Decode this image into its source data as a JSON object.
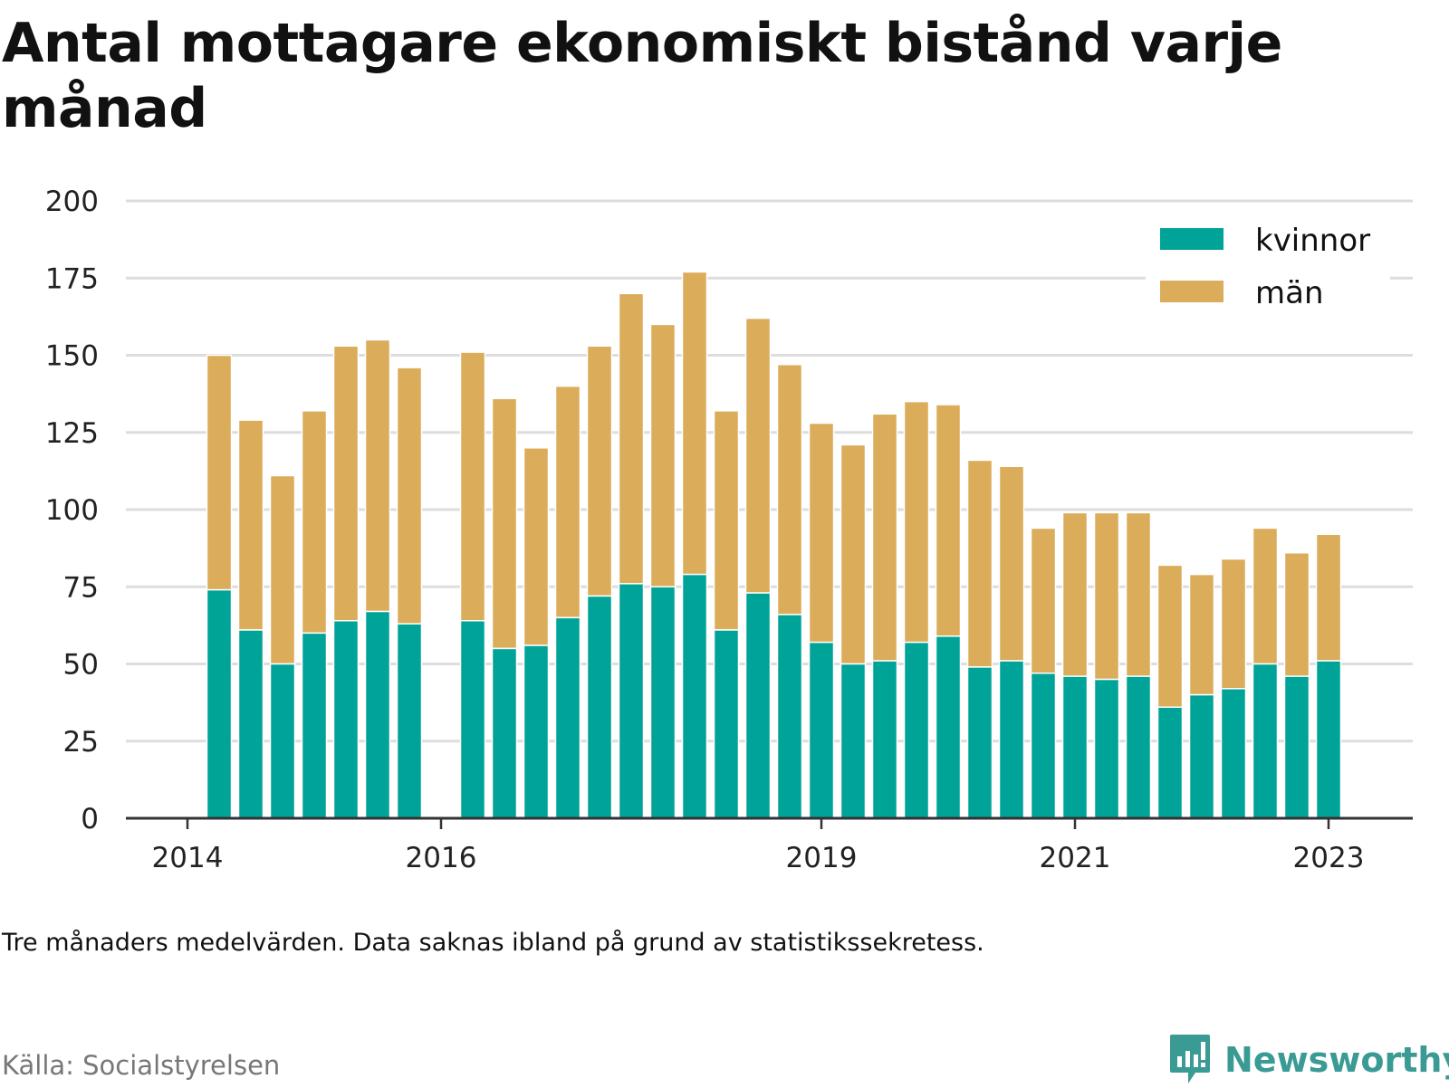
{
  "title_line1": "Antal mottagare ekonomiskt bistånd varje",
  "title_line2": "månad",
  "note": "Tre månaders medelvärden. Data saknas ibland på grund av statistikssekretess.",
  "source": "Källa: Socialstyrelsen",
  "brand": "Newsworthy",
  "colors": {
    "kvinnor": "#00a398",
    "man": "#dbac5a",
    "grid": "#dddddd",
    "axis": "#333333",
    "brand": "#3a9a94"
  },
  "chart_data": {
    "type": "bar",
    "stacked": true,
    "ylim": [
      0,
      200
    ],
    "yticks": [
      0,
      25,
      50,
      75,
      100,
      125,
      150,
      175,
      200
    ],
    "xticks": [
      {
        "label": "2014",
        "slot": 0
      },
      {
        "label": "2016",
        "slot": 8
      },
      {
        "label": "2019",
        "slot": 20
      },
      {
        "label": "2021",
        "slot": 28
      },
      {
        "label": "2023",
        "slot": 36
      }
    ],
    "legend_position": "top-right",
    "series": [
      {
        "name": "kvinnor",
        "color": "#00a398",
        "values": [
          null,
          74,
          61,
          50,
          60,
          64,
          67,
          63,
          null,
          64,
          55,
          56,
          65,
          72,
          76,
          75,
          79,
          61,
          73,
          66,
          57,
          50,
          51,
          57,
          59,
          49,
          51,
          47,
          46,
          45,
          46,
          36,
          40,
          42,
          50,
          46,
          51
        ]
      },
      {
        "name": "män",
        "color": "#dbac5a",
        "values": [
          null,
          76,
          68,
          61,
          72,
          89,
          88,
          83,
          null,
          87,
          81,
          64,
          75,
          81,
          94,
          85,
          98,
          71,
          89,
          81,
          71,
          71,
          80,
          78,
          75,
          67,
          63,
          47,
          53,
          54,
          53,
          46,
          39,
          42,
          44,
          40,
          41
        ]
      }
    ]
  }
}
